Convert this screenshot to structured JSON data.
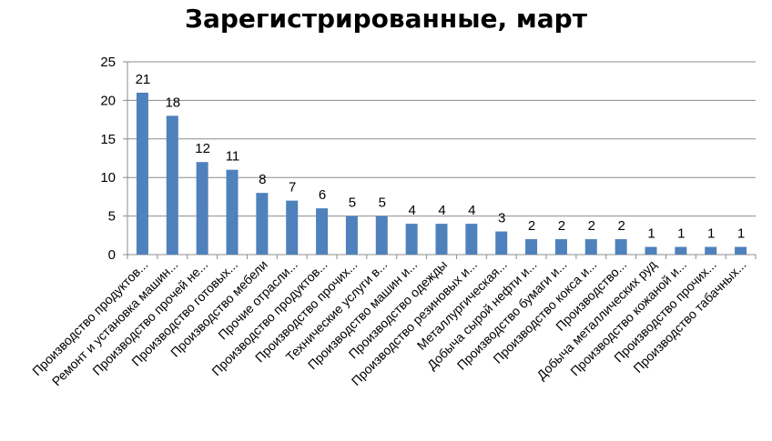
{
  "chart_data": {
    "type": "bar",
    "title": "Зарегистрированные, март",
    "xlabel": "",
    "ylabel": "",
    "ylim": [
      0,
      25
    ],
    "yticks": [
      0,
      5,
      10,
      15,
      20,
      25
    ],
    "grid": true,
    "legend": "none",
    "bar_color": "#4f81bd",
    "categories": [
      "Производство продуктов...",
      "Ремонт и установка машин...",
      "Производство прочей не...",
      "Производство готовых...",
      "Производство мебели",
      "Прочие отрасли...",
      "Производство продуктов...",
      "Производство прочих...",
      "Технические услуги в...",
      "Производство машин и...",
      "Производство одежды",
      "Производство резиновых и...",
      "Металлургическая...",
      "Добыча сырой нефти и...",
      "Производство бумаги и...",
      "Производство кокса и...",
      "Производство...",
      "Добыча металлических руд",
      "Производство кожаной и...",
      "Производство прочих...",
      "Производство табачных..."
    ],
    "values": [
      21,
      18,
      12,
      11,
      8,
      7,
      6,
      5,
      5,
      4,
      4,
      4,
      3,
      2,
      2,
      2,
      2,
      1,
      1,
      1,
      1
    ]
  }
}
